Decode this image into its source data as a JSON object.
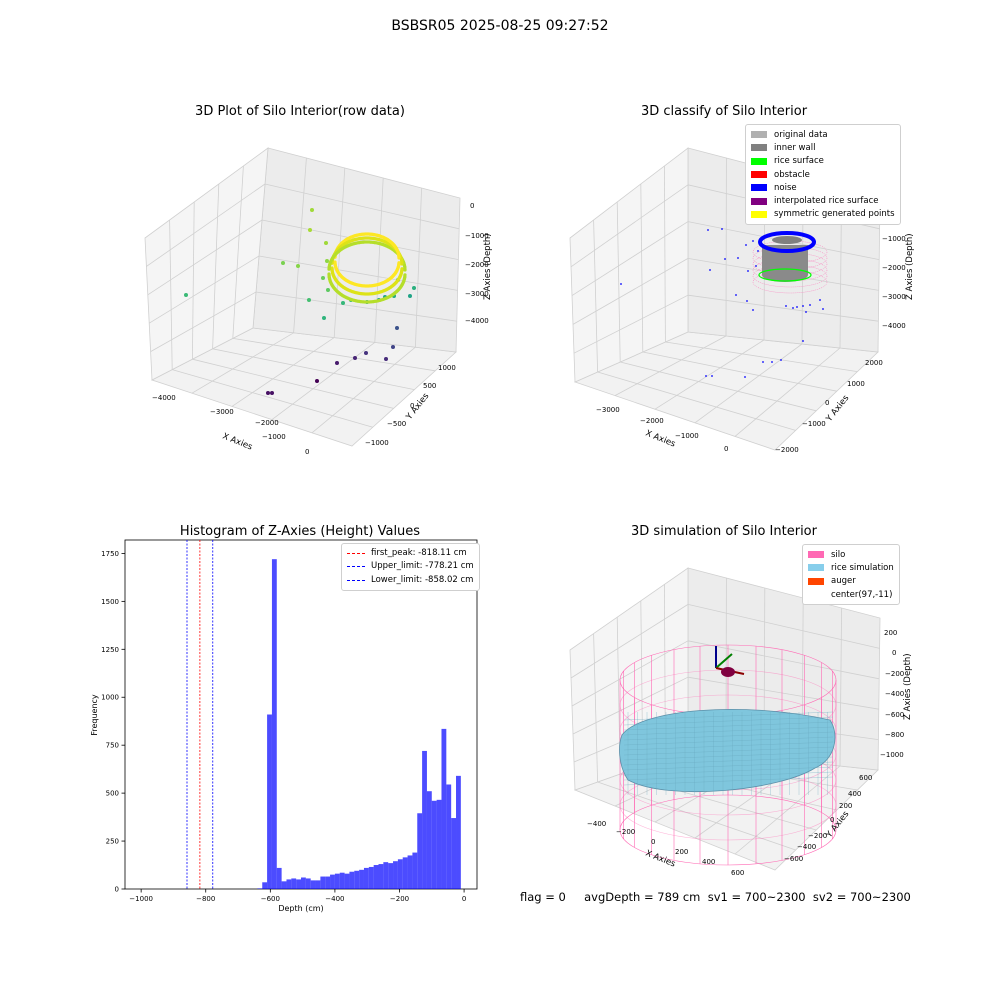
{
  "suptitle": "BSBSR05 2025-08-25 09:27:52",
  "footer": "flag = 0     avgDepth = 789 cm  sv1 = 700~2300  sv2 = 700~2300",
  "panels": {
    "raw": {
      "title": "3D Plot of Silo Interior(row data)",
      "xlabel": "X Axies",
      "ylabel": "Y Axies",
      "zlabel": "Z Axies (Depth)",
      "xticks": [
        "−4000",
        "−3000",
        "−2000",
        "−1000",
        "0"
      ],
      "yticks": [
        "−1000",
        "−500",
        "0",
        "500",
        "1000"
      ],
      "zticks": [
        "0",
        "−1000",
        "−2000",
        "−3000",
        "−4000"
      ]
    },
    "classify": {
      "title": "3D classify of Silo Interior",
      "xlabel": "X Axies",
      "ylabel": "Y Axies",
      "zlabel": "Z Axies (Depth)",
      "xticks": [
        "−3000",
        "−2000",
        "−1000",
        "0"
      ],
      "yticks": [
        "−2000",
        "−1000",
        "0",
        "1000",
        "2000"
      ],
      "zticks": [
        "0",
        "−1000",
        "−2000",
        "−3000",
        "−4000"
      ],
      "legend": [
        {
          "label": "original data",
          "color": "#b0b0b0"
        },
        {
          "label": "inner wall",
          "color": "#808080"
        },
        {
          "label": "rice surface",
          "color": "#00ff00"
        },
        {
          "label": "obstacle",
          "color": "#ff0000"
        },
        {
          "label": "noise",
          "color": "#0000ff"
        },
        {
          "label": "interpolated rice surface",
          "color": "#800080"
        },
        {
          "label": "symmetric generated points",
          "color": "#ffff00"
        }
      ]
    },
    "histogram": {
      "title": "Histogram of Z-Axies (Height) Values",
      "xlabel": "Depth (cm)",
      "ylabel": "Frequency",
      "xticks": [
        "−1000",
        "−800",
        "−600",
        "−400",
        "−200",
        "0"
      ],
      "yticks": [
        "0",
        "250",
        "500",
        "750",
        "1000",
        "1250",
        "1500",
        "1750"
      ],
      "legend": [
        {
          "label": "first_peak: -818.11 cm",
          "color": "#ff0000"
        },
        {
          "label": "Upper_limit: -778.21 cm",
          "color": "#0000ff"
        },
        {
          "label": "Lower_limit: -858.02 cm",
          "color": "#0000ff"
        }
      ]
    },
    "simulation": {
      "title": "3D simulation of Silo Interior",
      "xlabel": "X Axies",
      "ylabel": "Y Axies",
      "zlabel": "Z Axies (Depth)",
      "xticks": [
        "−400",
        "−200",
        "0",
        "200",
        "400",
        "600"
      ],
      "yticks": [
        "−600",
        "−400",
        "−200",
        "0",
        "200",
        "400",
        "600"
      ],
      "zticks": [
        "200",
        "0",
        "−200",
        "−400",
        "−600",
        "−800",
        "−1000"
      ],
      "legend": [
        {
          "label": "silo",
          "color": "#ff69b4"
        },
        {
          "label": "rice simulation",
          "color": "#87ceeb"
        },
        {
          "label": "auger",
          "color": "#ff4500"
        },
        {
          "label": "center(97,-11)",
          "color": ""
        }
      ]
    }
  },
  "chart_data": [
    {
      "type": "scatter",
      "title": "3D Plot of Silo Interior(row data)",
      "xlabel": "X Axies",
      "ylabel": "Y Axies",
      "zlabel": "Z Axies (Depth)",
      "xlim": [
        -4000,
        0
      ],
      "ylim": [
        -1000,
        1000
      ],
      "zlim": [
        -4000,
        0
      ],
      "colormap": "viridis by depth"
    },
    {
      "type": "scatter",
      "title": "3D classify of Silo Interior",
      "xlabel": "X Axies",
      "ylabel": "Y Axies",
      "zlabel": "Z Axies (Depth)",
      "xlim": [
        -3000,
        0
      ],
      "ylim": [
        -2000,
        2000
      ],
      "zlim": [
        -4000,
        0
      ]
    },
    {
      "type": "bar",
      "title": "Histogram of Z-Axies (Height) Values",
      "xlabel": "Depth (cm)",
      "ylabel": "Frequency",
      "xlim": [
        -1050,
        40
      ],
      "ylim": [
        0,
        1820
      ],
      "bin_width": 15,
      "bin_start": -1000,
      "color": "#0000ff",
      "values": [
        0,
        0,
        0,
        0,
        0,
        0,
        0,
        0,
        0,
        0,
        0,
        0,
        0,
        0,
        0,
        0,
        0,
        0,
        0,
        0,
        0,
        0,
        0,
        0,
        3,
        35,
        910,
        1720,
        110,
        40,
        50,
        55,
        50,
        60,
        55,
        45,
        45,
        65,
        65,
        75,
        80,
        85,
        80,
        90,
        95,
        100,
        110,
        115,
        125,
        130,
        140,
        135,
        145,
        155,
        165,
        175,
        190,
        395,
        720,
        510,
        460,
        465,
        835,
        545,
        370,
        590
      ],
      "lines": [
        {
          "name": "first_peak: -818.11 cm",
          "x": -818.11,
          "color": "#ff0000"
        },
        {
          "name": "Upper_limit: -778.21 cm",
          "x": -778.21,
          "color": "#0000ff"
        },
        {
          "name": "Lower_limit: -858.02 cm",
          "x": -858.02,
          "color": "#0000ff"
        }
      ]
    },
    {
      "type": "scatter",
      "title": "3D simulation of Silo Interior",
      "xlabel": "X Axies",
      "ylabel": "Y Axies",
      "zlabel": "Z Axies (Depth)",
      "xlim": [
        -500,
        700
      ],
      "ylim": [
        -700,
        700
      ],
      "zlim": [
        -1100,
        300
      ],
      "center": [
        97,
        -11
      ]
    }
  ]
}
